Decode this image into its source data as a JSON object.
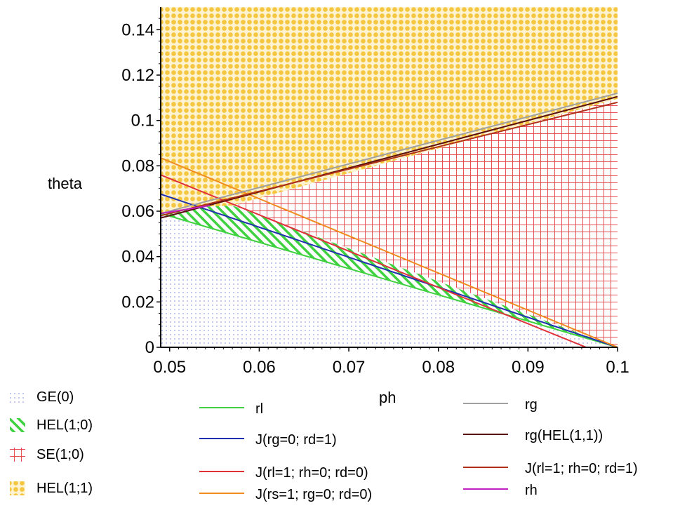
{
  "chart_data": {
    "type": "area",
    "xlabel": "ph",
    "ylabel": "theta",
    "xlim": [
      0.049,
      0.1
    ],
    "ylim": [
      0,
      0.15
    ],
    "x_ticks": [
      "0.05",
      "0.06",
      "0.07",
      "0.08",
      "0.09",
      "0.1"
    ],
    "y_ticks": [
      "0",
      "0.02",
      "0.04",
      "0.06",
      "0.08",
      "0.1",
      "0.12",
      "0.14"
    ],
    "regions": [
      {
        "name": "GE(0)",
        "pattern": "dots",
        "color": "#9aa0e0",
        "boundary": [
          [
            0.049,
            0.0
          ],
          [
            0.049,
            0.059
          ],
          [
            0.1,
            0.0
          ]
        ]
      },
      {
        "name": "HEL(1;0)",
        "pattern": "diagonal-hatch",
        "color": "#3fd13f",
        "boundary": [
          [
            0.049,
            0.059
          ],
          [
            0.054,
            0.062
          ],
          [
            0.057,
            0.0625
          ],
          [
            0.1,
            0.0
          ],
          [
            0.049,
            0.059
          ]
        ]
      },
      {
        "name": "SE(1;0)",
        "pattern": "grid",
        "color": "#e8505a",
        "boundary": [
          [
            0.057,
            0.0625
          ],
          [
            0.1,
            0.1095
          ],
          [
            0.1,
            0.0
          ]
        ]
      },
      {
        "name": "HEL(1;1)",
        "pattern": "dense-dots",
        "color": "#f5c640",
        "boundary": [
          [
            0.049,
            0.059
          ],
          [
            0.049,
            0.15
          ],
          [
            0.1,
            0.15
          ],
          [
            0.1,
            0.1095
          ],
          [
            0.057,
            0.0625
          ],
          [
            0.054,
            0.062
          ]
        ]
      }
    ],
    "series": [
      {
        "name": "rl",
        "color": "#3fd13f",
        "x": [
          0.049,
          0.1
        ],
        "y": [
          0.059,
          0.0
        ]
      },
      {
        "name": "J(rg=0; rd=1)",
        "color": "#1f2fb0",
        "x": [
          0.049,
          0.1
        ],
        "y": [
          0.0675,
          0.0
        ]
      },
      {
        "name": "J(rl=1; rh=0; rd=0)",
        "color": "#e0303a",
        "x": [
          0.049,
          0.0965
        ],
        "y": [
          0.076,
          0.0
        ]
      },
      {
        "name": "J(rs=1; rg=0; rd=0)",
        "color": "#f08c20",
        "x": [
          0.049,
          0.1
        ],
        "y": [
          0.0835,
          0.0
        ]
      },
      {
        "name": "rg",
        "color": "#a0a0a0",
        "x": [
          0.049,
          0.1
        ],
        "y": [
          0.059,
          0.112
        ]
      },
      {
        "name": "rg(HEL(1,1))",
        "color": "#5a1010",
        "x": [
          0.049,
          0.1
        ],
        "y": [
          0.057,
          0.1105
        ]
      },
      {
        "name": "J(rl=1; rh=0; rd=1)",
        "color": "#b03018",
        "x": [
          0.049,
          0.1
        ],
        "y": [
          0.058,
          0.108
        ]
      },
      {
        "name": "rh",
        "color": "#c020c0",
        "x": [
          0.049,
          0.0545
        ],
        "y": [
          0.059,
          0.0625
        ]
      }
    ]
  },
  "legend": {
    "regions": [
      {
        "label": "GE(0)",
        "pattern": "dots"
      },
      {
        "label": "HEL(1;0)",
        "pattern": "diagonal-hatch"
      },
      {
        "label": "SE(1;0)",
        "pattern": "grid"
      },
      {
        "label": "HEL(1;1)",
        "pattern": "dense-dots"
      }
    ],
    "lines_col1": [
      {
        "label": "rl",
        "color": "#3fd13f"
      },
      {
        "label": "J(rg=0; rd=1)",
        "color": "#1f2fb0"
      },
      {
        "label": "J(rl=1; rh=0; rd=0)",
        "color": "#e0303a"
      },
      {
        "label": "J(rs=1; rg=0; rd=0)",
        "color": "#f08c20"
      }
    ],
    "lines_col2": [
      {
        "label": "rg",
        "color": "#a0a0a0"
      },
      {
        "label": "rg(HEL(1,1))",
        "color": "#5a1010"
      },
      {
        "label": "J(rl=1; rh=0; rd=1)",
        "color": "#b03018"
      },
      {
        "label": "rh",
        "color": "#c020c0"
      }
    ]
  }
}
